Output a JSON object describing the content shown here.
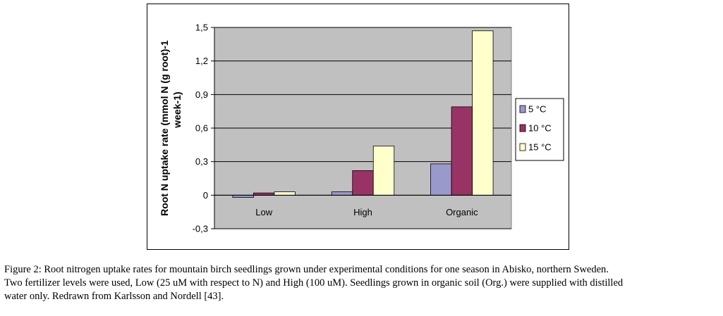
{
  "chart_data": {
    "type": "bar",
    "ylabel_lines": [
      "Root N uptake rate (mmol N (g root)-1",
      "week-1)"
    ],
    "xlabel": "",
    "categories": [
      "Low",
      "High",
      "Organic"
    ],
    "ylim": [
      -0.3,
      1.5
    ],
    "yticks": [
      "-0,3",
      "0",
      "0,3",
      "0,6",
      "0,9",
      "1,2",
      "1,5"
    ],
    "ytick_values": [
      -0.3,
      0,
      0.3,
      0.6,
      0.9,
      1.2,
      1.5
    ],
    "grid": "horizontal",
    "legend_position": "right",
    "series": [
      {
        "name": "5 °C",
        "color": "#9999cc",
        "values": [
          -0.02,
          0.03,
          0.28
        ]
      },
      {
        "name": "10 °C",
        "color": "#993366",
        "values": [
          0.02,
          0.22,
          0.79
        ]
      },
      {
        "name": "15 °C",
        "color": "#ffffcc",
        "values": [
          0.03,
          0.44,
          1.47
        ]
      }
    ],
    "plot_background": "#c0c0c0"
  },
  "caption": {
    "line1": "Figure 2: Root nitrogen uptake rates for mountain birch seedlings grown under experimental conditions for one season in Abisko, northern Sweden.",
    "line2": "Two fertilizer levels were used, Low (25 uM with respect to N) and High (100 uM). Seedlings grown in organic soil (Org.) were supplied with distilled",
    "line3": "water only. Redrawn from Karlsson and Nordell [43]."
  }
}
